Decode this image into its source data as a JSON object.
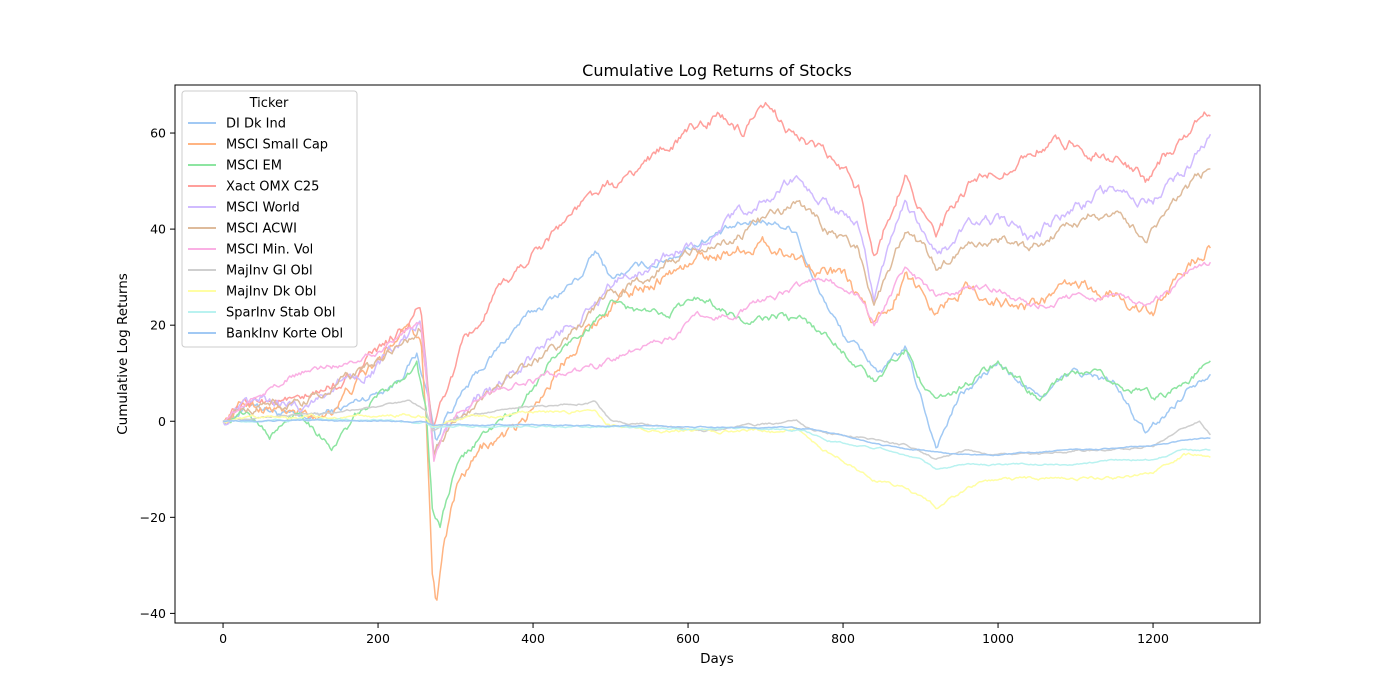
{
  "chart_data": {
    "type": "line",
    "title": "Cumulative Log Returns of Stocks",
    "xlabel": "Days",
    "ylabel": "Cumulative Log Returns",
    "xlim": [
      -62,
      1338
    ],
    "ylim": [
      -42,
      70
    ],
    "xticks": [
      0,
      200,
      400,
      600,
      800,
      1000,
      1200
    ],
    "yticks": [
      -40,
      -20,
      0,
      20,
      40,
      60
    ],
    "grid": false,
    "legend": {
      "title": "Ticker",
      "placement": "top-left"
    },
    "series": [
      {
        "name": "DI Dk Ind",
        "color": "#a1c9f4",
        "x": [
          0,
          40,
          100,
          160,
          220,
          250,
          265,
          275,
          290,
          330,
          380,
          420,
          460,
          480,
          500,
          560,
          620,
          660,
          700,
          740,
          760,
          800,
          850,
          880,
          920,
          950,
          1000,
          1050,
          1100,
          1150,
          1190,
          1220,
          1250,
          1275
        ],
        "y": [
          0,
          4,
          0,
          3,
          8,
          14,
          5,
          -4,
          2,
          10,
          20,
          25,
          30,
          35,
          30,
          33,
          38,
          40,
          42,
          40,
          30,
          18,
          10,
          15,
          -5,
          5,
          12,
          5,
          10,
          8,
          -3,
          2,
          8,
          11
        ]
      },
      {
        "name": "MSCI Small Cap",
        "color": "#ffb482",
        "x": [
          0,
          30,
          80,
          120,
          160,
          200,
          240,
          255,
          262,
          270,
          275,
          285,
          300,
          340,
          380,
          420,
          460,
          500,
          560,
          620,
          660,
          700,
          760,
          800,
          840,
          880,
          920,
          960,
          1000,
          1040,
          1100,
          1160,
          1200,
          1240,
          1275
        ],
        "y": [
          0,
          4,
          2,
          0,
          6,
          12,
          22,
          18,
          2,
          -30,
          -37,
          -25,
          -15,
          -5,
          -2,
          8,
          18,
          24,
          30,
          34,
          36,
          37,
          33,
          30,
          20,
          30,
          24,
          28,
          25,
          24,
          28,
          26,
          22,
          32,
          37
        ]
      },
      {
        "name": "MSCI EM",
        "color": "#8de5a1",
        "x": [
          0,
          30,
          60,
          100,
          140,
          180,
          220,
          250,
          262,
          270,
          280,
          300,
          340,
          380,
          420,
          460,
          500,
          560,
          620,
          680,
          720,
          760,
          800,
          840,
          880,
          920,
          960,
          1000,
          1050,
          1100,
          1150,
          1200,
          1240,
          1275
        ],
        "y": [
          0,
          2,
          -3,
          2,
          -5,
          2,
          8,
          12,
          2,
          -18,
          -22,
          -10,
          -2,
          2,
          12,
          18,
          24,
          22,
          26,
          20,
          22,
          20,
          15,
          8,
          15,
          3,
          8,
          12,
          5,
          10,
          8,
          5,
          8,
          12
        ]
      },
      {
        "name": "Xact OMX C25",
        "color": "#ff9f9b",
        "x": [
          0,
          50,
          100,
          150,
          200,
          240,
          255,
          262,
          270,
          285,
          310,
          350,
          400,
          440,
          480,
          520,
          560,
          600,
          640,
          670,
          700,
          740,
          780,
          820,
          840,
          880,
          920,
          960,
          1000,
          1050,
          1100,
          1150,
          1190,
          1220,
          1250,
          1275
        ],
        "y": [
          0,
          5,
          3,
          8,
          14,
          20,
          24,
          12,
          -3,
          5,
          15,
          25,
          35,
          42,
          47,
          50,
          56,
          60,
          64,
          60,
          64,
          60,
          55,
          48,
          35,
          52,
          38,
          48,
          52,
          57,
          58,
          55,
          50,
          56,
          60,
          64
        ]
      },
      {
        "name": "MSCI World",
        "color": "#d0bbff",
        "x": [
          0,
          50,
          100,
          150,
          200,
          240,
          255,
          262,
          272,
          290,
          330,
          380,
          420,
          460,
          500,
          560,
          620,
          660,
          700,
          740,
          780,
          820,
          840,
          880,
          920,
          960,
          1000,
          1040,
          1100,
          1150,
          1200,
          1240,
          1275
        ],
        "y": [
          0,
          4,
          3,
          8,
          12,
          17,
          20,
          10,
          -8,
          -2,
          5,
          10,
          16,
          22,
          28,
          34,
          38,
          42,
          46,
          50,
          45,
          40,
          26,
          44,
          34,
          40,
          42,
          38,
          45,
          48,
          46,
          52,
          59
        ]
      },
      {
        "name": "MSCI ACWI",
        "color": "#debb9b",
        "x": [
          0,
          50,
          100,
          150,
          200,
          240,
          255,
          262,
          272,
          290,
          330,
          380,
          420,
          460,
          500,
          560,
          620,
          660,
          700,
          740,
          780,
          820,
          840,
          880,
          920,
          960,
          1000,
          1040,
          1100,
          1150,
          1190,
          1240,
          1275
        ],
        "y": [
          0,
          4,
          3,
          8,
          12,
          17,
          20,
          10,
          -8,
          -2,
          5,
          10,
          14,
          20,
          26,
          32,
          36,
          38,
          42,
          45,
          40,
          36,
          24,
          40,
          32,
          36,
          38,
          35,
          42,
          44,
          38,
          48,
          53
        ]
      },
      {
        "name": "MSCI Min. Vol",
        "color": "#fab0e4",
        "x": [
          0,
          50,
          100,
          150,
          200,
          240,
          255,
          262,
          272,
          290,
          330,
          380,
          440,
          500,
          540,
          580,
          620,
          660,
          700,
          740,
          780,
          820,
          840,
          880,
          920,
          960,
          1000,
          1040,
          1100,
          1150,
          1200,
          1240,
          1275
        ],
        "y": [
          0,
          6,
          10,
          12,
          15,
          19,
          20,
          10,
          -8,
          0,
          5,
          8,
          10,
          12,
          16,
          18,
          22,
          22,
          25,
          28,
          30,
          26,
          20,
          32,
          26,
          28,
          28,
          24,
          26,
          26,
          24,
          30,
          33
        ]
      },
      {
        "name": "MajInv Gl Obl",
        "color": "#cfcfcf",
        "x": [
          0,
          50,
          100,
          150,
          200,
          240,
          262,
          270,
          290,
          340,
          400,
          440,
          480,
          500,
          560,
          620,
          680,
          740,
          760,
          800,
          840,
          880,
          920,
          960,
          1000,
          1050,
          1100,
          1150,
          1200,
          1230,
          1260,
          1275
        ],
        "y": [
          0,
          1,
          1.5,
          2,
          3,
          4,
          2,
          -2,
          0,
          2,
          3,
          3.5,
          4,
          0,
          -1,
          -2,
          -1,
          0,
          -2,
          -3,
          -4,
          -5,
          -8,
          -6,
          -7,
          -7,
          -6,
          -6,
          -5,
          -2,
          0,
          -3
        ]
      },
      {
        "name": "MajInv Dk Obl",
        "color": "#fffea3",
        "x": [
          0,
          50,
          100,
          150,
          200,
          240,
          262,
          270,
          290,
          340,
          400,
          440,
          480,
          500,
          560,
          620,
          680,
          740,
          760,
          800,
          840,
          880,
          920,
          960,
          1000,
          1050,
          1100,
          1150,
          1200,
          1240,
          1275
        ],
        "y": [
          0,
          0.5,
          0.8,
          1,
          1.2,
          1.5,
          1,
          -1,
          0,
          1,
          1.5,
          2,
          2,
          -1,
          -2,
          -2,
          -2,
          -2,
          -5,
          -8,
          -12,
          -14,
          -18,
          -14,
          -12,
          -12,
          -12,
          -12,
          -11,
          -7,
          -7
        ]
      },
      {
        "name": "SparInv Stab Obl",
        "color": "#b9f2f0",
        "x": [
          0,
          100,
          200,
          262,
          270,
          300,
          400,
          500,
          600,
          700,
          750,
          780,
          820,
          860,
          900,
          920,
          960,
          1000,
          1050,
          1100,
          1150,
          1200,
          1240,
          1275
        ],
        "y": [
          0,
          0.3,
          0.2,
          -0.3,
          -1.5,
          -1,
          -1,
          -1.2,
          -1.5,
          -1.5,
          -2,
          -4,
          -5,
          -6,
          -8,
          -10,
          -9,
          -9,
          -9,
          -9,
          -8,
          -8,
          -6,
          -6
        ]
      },
      {
        "name": "BankInv Korte Obl",
        "color": "#a1c9f4",
        "x": [
          0,
          100,
          200,
          262,
          270,
          300,
          400,
          500,
          600,
          700,
          750,
          800,
          850,
          900,
          950,
          1000,
          1050,
          1100,
          1150,
          1200,
          1240,
          1275
        ],
        "y": [
          0,
          0.2,
          0.1,
          -0.2,
          -0.8,
          -0.6,
          -0.8,
          -1,
          -1.2,
          -1.3,
          -1.5,
          -3,
          -5,
          -6,
          -7,
          -7,
          -6.5,
          -6,
          -5.5,
          -5,
          -4,
          -3.5
        ]
      }
    ]
  }
}
